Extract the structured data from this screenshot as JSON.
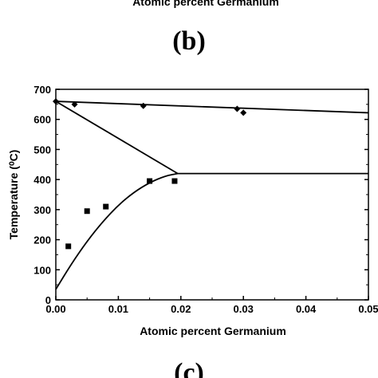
{
  "top_partial_xlabel": "Atomic percent Germanium",
  "panel_label_b": "(b)",
  "panel_label_c": "(c)",
  "chart_data": {
    "type": "scatter",
    "xlabel": "Atomic percent Germanium",
    "ylabel": "Temperature (⁰C)",
    "xlim": [
      0,
      0.05
    ],
    "ylim": [
      0,
      700
    ],
    "x_ticks": [
      0.0,
      0.01,
      0.02,
      0.03,
      0.04,
      0.05
    ],
    "x_tick_labels": [
      "0.00",
      "0.01",
      "0.02",
      "0.03",
      "0.04",
      "0.05"
    ],
    "y_ticks": [
      0,
      100,
      200,
      300,
      400,
      500,
      600,
      700
    ],
    "y_tick_labels": [
      "0",
      "100",
      "200",
      "300",
      "400",
      "500",
      "600",
      "700"
    ],
    "grid": false,
    "series": [
      {
        "marker": "diamond",
        "points": [
          {
            "x": 0.0,
            "y": 660
          },
          {
            "x": 0.003,
            "y": 650
          },
          {
            "x": 0.014,
            "y": 645
          },
          {
            "x": 0.029,
            "y": 635
          },
          {
            "x": 0.03,
            "y": 622
          }
        ]
      },
      {
        "marker": "square",
        "points": [
          {
            "x": 0.002,
            "y": 178
          },
          {
            "x": 0.005,
            "y": 295
          },
          {
            "x": 0.008,
            "y": 310
          },
          {
            "x": 0.015,
            "y": 395
          },
          {
            "x": 0.019,
            "y": 395
          }
        ]
      }
    ],
    "lines": [
      {
        "points": [
          {
            "x": 0.0,
            "y": 660
          },
          {
            "x": 0.05,
            "y": 622
          }
        ]
      },
      {
        "points": [
          {
            "x": 0.0,
            "y": 660
          },
          {
            "x": 0.0195,
            "y": 420
          }
        ]
      },
      {
        "points": [
          {
            "x": 0.0195,
            "y": 420
          },
          {
            "x": 0.05,
            "y": 420
          }
        ]
      },
      {
        "curve": "solvus",
        "points": [
          {
            "x": 0.0,
            "y": 35
          },
          {
            "x": 0.0025,
            "y": 120
          },
          {
            "x": 0.005,
            "y": 195
          },
          {
            "x": 0.0075,
            "y": 260
          },
          {
            "x": 0.01,
            "y": 315
          },
          {
            "x": 0.0125,
            "y": 358
          },
          {
            "x": 0.015,
            "y": 390
          },
          {
            "x": 0.0175,
            "y": 412
          },
          {
            "x": 0.0195,
            "y": 420
          }
        ]
      }
    ]
  }
}
